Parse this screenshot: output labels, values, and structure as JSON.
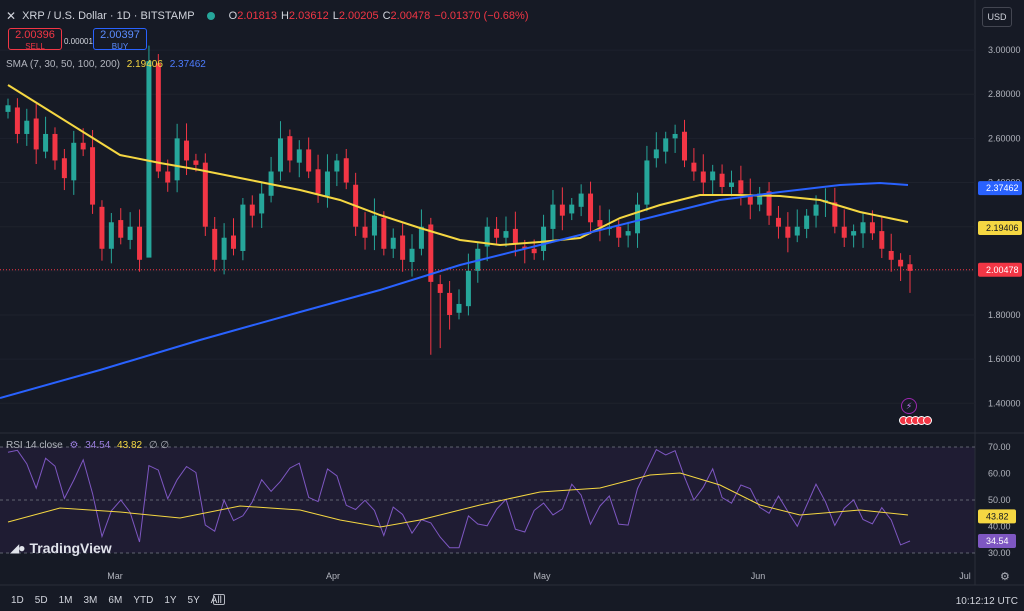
{
  "header": {
    "symbol": "XRP / U.S. Dollar · 1D · BITSTAMP",
    "o_label": "O",
    "o": "2.01813",
    "h_label": "H",
    "h": "2.03612",
    "l_label": "L",
    "l": "2.00205",
    "c_label": "C",
    "c": "2.00478",
    "change": "−0.01370 (−0.68%)"
  },
  "trade": {
    "sell_price": "2.00396",
    "sell_label": "SELL",
    "spread": "0.00001",
    "buy_price": "2.00397",
    "buy_label": "BUY"
  },
  "indicators": {
    "sma_label": "SMA (7, 30, 50, 100, 200)",
    "sma_val1": "2.19406",
    "sma_val2": "2.37462",
    "rsi_label": "RSI 14 close",
    "rsi_val": "34.54",
    "rsi_ma": "43.82",
    "rsi_extra": "∅ ∅"
  },
  "currency": "USD",
  "branding": "TradingView",
  "timeframes": [
    "1D",
    "5D",
    "1M",
    "3M",
    "6M",
    "YTD",
    "1Y",
    "5Y",
    "All"
  ],
  "clock": "10:12:12 UTC",
  "colors": {
    "up": "#26a69a",
    "down": "#f23645",
    "sma_fast": "#f5d742",
    "sma_slow": "#2962ff",
    "rsi": "#7e57c2"
  },
  "chart_data": {
    "type": "candlestick",
    "title": "XRP / U.S. Dollar · 1D · BITSTAMP",
    "price_axis": {
      "ticks": [
        1.4,
        1.6,
        1.8,
        2.0,
        2.2,
        2.4,
        2.6,
        2.8,
        3.0
      ],
      "tick_labels": [
        "1.40000",
        "1.60000",
        "1.80000",
        "2.00000",
        "2.20000",
        "2.40000",
        "2.60000",
        "2.80000",
        "3.00000"
      ],
      "range": [
        1.27,
        3.1
      ]
    },
    "time_axis": {
      "labels": [
        "Mar",
        "Apr",
        "May",
        "Jun",
        "Jul"
      ]
    },
    "last_price": 2.00478,
    "ohlc_closes_approx": [
      2.75,
      2.62,
      2.68,
      2.55,
      2.62,
      2.5,
      2.42,
      2.58,
      2.55,
      2.3,
      2.1,
      2.22,
      2.15,
      2.2,
      2.05,
      2.95,
      2.45,
      2.4,
      2.6,
      2.5,
      2.48,
      2.2,
      2.05,
      2.15,
      2.1,
      2.3,
      2.25,
      2.35,
      2.45,
      2.6,
      2.5,
      2.55,
      2.45,
      2.35,
      2.45,
      2.5,
      2.4,
      2.2,
      2.15,
      2.25,
      2.1,
      2.15,
      2.05,
      2.1,
      2.2,
      1.95,
      1.9,
      1.8,
      1.85,
      2.0,
      2.1,
      2.2,
      2.15,
      2.18,
      2.12,
      2.1,
      2.08,
      2.2,
      2.3,
      2.25,
      2.3,
      2.35,
      2.22,
      2.2,
      2.2,
      2.15,
      2.18,
      2.3,
      2.5,
      2.55,
      2.6,
      2.62,
      2.5,
      2.45,
      2.4,
      2.45,
      2.38,
      2.4,
      2.35,
      2.3,
      2.35,
      2.25,
      2.2,
      2.15,
      2.2,
      2.25,
      2.3,
      2.32,
      2.2,
      2.15,
      2.18,
      2.22,
      2.17,
      2.1,
      2.05,
      2.02,
      2.0
    ],
    "series": [
      {
        "name": "SMA 50",
        "value_last": 2.19406,
        "color": "#f5d742"
      },
      {
        "name": "SMA 200",
        "value_last": 2.37462,
        "color": "#2962ff"
      }
    ],
    "rsi": {
      "label": "RSI 14 close",
      "last": 34.54,
      "ma_last": 43.82,
      "ticks": [
        30,
        40,
        50,
        60,
        70
      ],
      "tick_labels": [
        "30.00",
        "40.00",
        "50.00",
        "60.00",
        "70.00"
      ]
    }
  }
}
